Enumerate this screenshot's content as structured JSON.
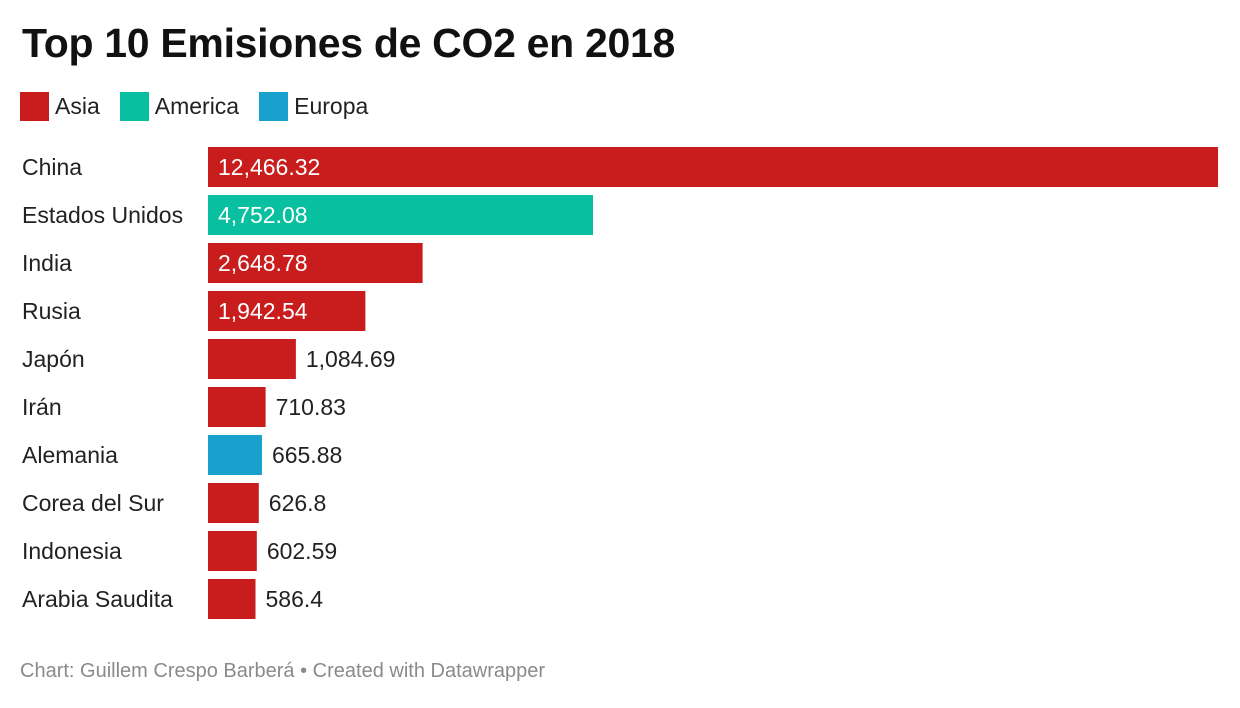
{
  "title": "Top 10 Emisiones de CO2 en 2018",
  "legend": [
    {
      "label": "Asia",
      "color": "#c91c1c"
    },
    {
      "label": "America",
      "color": "#08bfa0"
    },
    {
      "label": "Europa",
      "color": "#18a1cd"
    }
  ],
  "chart_data": {
    "type": "bar",
    "orientation": "horizontal",
    "title": "Top 10 Emisiones de CO2 en 2018",
    "categories": [
      "China",
      "Estados Unidos",
      "India",
      "Rusia",
      "Japón",
      "Irán",
      "Alemania",
      "Corea del Sur",
      "Indonesia",
      "Arabia Saudita"
    ],
    "values": [
      12466.32,
      4752.08,
      2648.78,
      1942.54,
      1084.69,
      710.83,
      665.88,
      626.8,
      602.59,
      586.4
    ],
    "value_labels": [
      "12,466.32",
      "4,752.08",
      "2,648.78",
      "1,942.54",
      "1,084.69",
      "710.83",
      "665.88",
      "626.8",
      "602.59",
      "586.4"
    ],
    "groups": [
      "Asia",
      "America",
      "Asia",
      "Asia",
      "Asia",
      "Asia",
      "Europa",
      "Asia",
      "Asia",
      "Asia"
    ],
    "group_colors": {
      "Asia": "#c91c1c",
      "America": "#08bfa0",
      "Europa": "#18a1cd"
    },
    "xlim": [
      0,
      12466.32
    ],
    "grid": false,
    "legend_position": "top-left"
  },
  "footer": {
    "text": "Chart: Guillem Crespo Barberá • Created with Datawrapper"
  }
}
